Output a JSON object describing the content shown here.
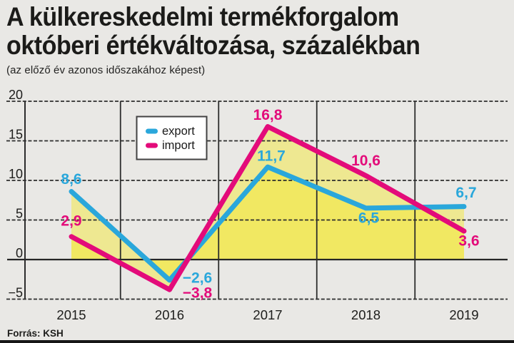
{
  "header": {
    "title_line1": "A külkereskedelmi termékforgalom",
    "title_line2": "októberi értékváltozása, százalékban",
    "subtitle": "(az előző év azonos időszakához képest)"
  },
  "footer": {
    "source": "Forrás: KSH"
  },
  "colors": {
    "export": "#2aa7db",
    "import": "#e30b7a",
    "area_fill": "#f5e82a",
    "background": "#e9e8e5",
    "grid": "#2c2c2c",
    "zero_line": "#262626",
    "text": "#1d1d1b",
    "legend_border": "#424242",
    "legend_bg": "#ffffff",
    "bottom_bar": "#161616"
  },
  "legend": {
    "items": [
      {
        "label": "export",
        "series": "export"
      },
      {
        "label": "import",
        "series": "import"
      }
    ]
  },
  "chart_data": {
    "type": "line",
    "title": "A külkereskedelmi termékforgalom októberi értékváltozása, százalékban",
    "subtitle": "az előző év azonos időszakához képest",
    "categories": [
      "2015",
      "2016",
      "2017",
      "2018",
      "2019"
    ],
    "series": [
      {
        "name": "export",
        "color": "#2aa7db",
        "values": [
          8.6,
          -2.6,
          11.7,
          6.5,
          6.7
        ],
        "label_offsets": [
          [
            0,
            -17
          ],
          [
            39,
            -3
          ],
          [
            5,
            -15
          ],
          [
            4,
            14
          ],
          [
            3,
            -19
          ]
        ]
      },
      {
        "name": "import",
        "color": "#e30b7a",
        "values": [
          2.9,
          -3.8,
          16.8,
          10.6,
          3.6
        ],
        "label_offsets": [
          [
            0,
            -22
          ],
          [
            39,
            5
          ],
          [
            0,
            -16
          ],
          [
            0,
            -21
          ],
          [
            7,
            14
          ]
        ]
      }
    ],
    "yticks": [
      20,
      15,
      10,
      5,
      0,
      -5
    ],
    "ylim": [
      -5,
      20
    ],
    "xlabel": "",
    "ylabel": "",
    "decimal_separator": ",",
    "grid": {
      "horizontal": "dashed",
      "vertical_separators": true,
      "zero_line": "solid"
    },
    "legend_position": "inside-top-left",
    "area_fill": "translucent-yellow-under-each-line",
    "source": "Forrás: KSH"
  }
}
